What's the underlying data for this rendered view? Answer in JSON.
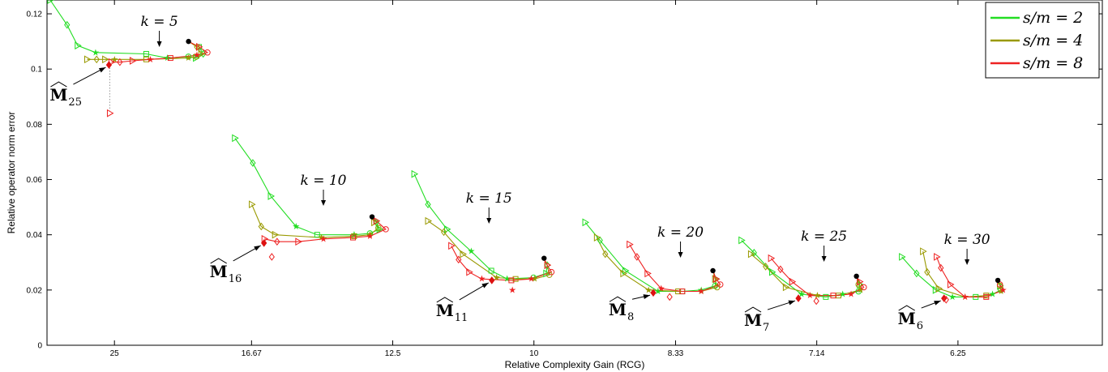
{
  "chart_data": {
    "type": "line",
    "xlabel": "Relative Complexity Gain (RCG)",
    "ylabel": "Relative operator norm error",
    "xlim": [
      0,
      1
    ],
    "ylim": [
      0,
      0.125
    ],
    "x_ticks": [
      {
        "pos": 0.0639,
        "label": "25"
      },
      {
        "pos": 0.1938,
        "label": "16.67"
      },
      {
        "pos": 0.3276,
        "label": "12.5"
      },
      {
        "pos": 0.4614,
        "label": "10"
      },
      {
        "pos": 0.5956,
        "label": "8.33"
      },
      {
        "pos": 0.7294,
        "label": "7.14"
      },
      {
        "pos": 0.8632,
        "label": "6.25"
      }
    ],
    "y_ticks": [
      {
        "value": 0,
        "label": "0"
      },
      {
        "value": 0.02,
        "label": "0.02"
      },
      {
        "value": 0.04,
        "label": "0.04"
      },
      {
        "value": 0.06,
        "label": "0.06"
      },
      {
        "value": 0.08,
        "label": "0.08"
      },
      {
        "value": 0.1,
        "label": "0.1"
      },
      {
        "value": 0.12,
        "label": "0.12"
      }
    ],
    "grid": false,
    "legend_position": "top-right",
    "series": [
      {
        "name": "s/m = 2",
        "color": "#22dd22"
      },
      {
        "name": "s/m = 4",
        "color": "#999900"
      },
      {
        "name": "s/m = 8",
        "color": "#ee2222"
      }
    ],
    "groups": [
      {
        "k_label": "k = 5",
        "m_label": "M",
        "m_sub": "25",
        "m_point": [
          0.0587,
          0.1015
        ],
        "extra_point": [
          0.0595,
          0.084
        ],
        "peak": [
          0.1341,
          0.11
        ],
        "curves": [
          [
            [
              0.003,
              0.125
            ],
            [
              0.019,
              0.116
            ],
            [
              0.029,
              0.1085
            ],
            [
              0.046,
              0.106
            ],
            [
              0.094,
              0.1055
            ],
            [
              0.114,
              0.104
            ],
            [
              0.134,
              0.1045
            ],
            [
              0.141,
              0.104
            ],
            [
              0.148,
              0.1055
            ],
            [
              0.144,
              0.108
            ],
            [
              0.1341,
              0.11
            ]
          ],
          [
            [
              0.038,
              0.1035
            ],
            [
              0.047,
              0.1035
            ],
            [
              0.055,
              0.1035
            ],
            [
              0.064,
              0.1035
            ],
            [
              0.094,
              0.1035
            ],
            [
              0.134,
              0.104
            ],
            [
              0.141,
              0.1045
            ],
            [
              0.146,
              0.1055
            ],
            [
              0.142,
              0.108
            ],
            [
              0.1341,
              0.11
            ]
          ],
          [
            [
              0.061,
              0.1025
            ],
            [
              0.069,
              0.1025
            ],
            [
              0.081,
              0.103
            ],
            [
              0.098,
              0.1035
            ],
            [
              0.117,
              0.104
            ],
            [
              0.142,
              0.105
            ],
            [
              0.152,
              0.106
            ],
            [
              0.144,
              0.108
            ],
            [
              0.1341,
              0.11
            ]
          ]
        ]
      },
      {
        "k_label": "k = 10",
        "m_label": "M",
        "m_sub": "16",
        "m_point": [
          0.2056,
          0.037
        ],
        "extra_point": [
          0.213,
          0.032
        ],
        "peak": [
          0.308,
          0.0465
        ],
        "curves": [
          [
            [
              0.178,
              0.075
            ],
            [
              0.195,
              0.066
            ],
            [
              0.212,
              0.054
            ],
            [
              0.236,
              0.043
            ],
            [
              0.256,
              0.04
            ],
            [
              0.291,
              0.04
            ],
            [
              0.306,
              0.0405
            ],
            [
              0.315,
              0.042
            ],
            [
              0.312,
              0.0445
            ],
            [
              0.308,
              0.0465
            ]
          ],
          [
            [
              0.194,
              0.051
            ],
            [
              0.203,
              0.043
            ],
            [
              0.216,
              0.04
            ],
            [
              0.26,
              0.039
            ],
            [
              0.291,
              0.0395
            ],
            [
              0.306,
              0.04
            ],
            [
              0.314,
              0.0425
            ],
            [
              0.31,
              0.0445
            ],
            [
              0.308,
              0.0465
            ]
          ],
          [
            [
              0.206,
              0.0385
            ],
            [
              0.218,
              0.0375
            ],
            [
              0.238,
              0.0375
            ],
            [
              0.262,
              0.0385
            ],
            [
              0.29,
              0.039
            ],
            [
              0.306,
              0.0395
            ],
            [
              0.321,
              0.042
            ],
            [
              0.312,
              0.045
            ],
            [
              0.308,
              0.0465
            ]
          ]
        ]
      },
      {
        "k_label": "k = 15",
        "m_label": "M",
        "m_sub": "11",
        "m_point": [
          0.4215,
          0.0235
        ],
        "extra_point": [
          0.441,
          0.02
        ],
        "peak": [
          0.471,
          0.0315
        ],
        "curves": [
          [
            [
              0.348,
              0.062
            ],
            [
              0.361,
              0.051
            ],
            [
              0.379,
              0.042
            ],
            [
              0.402,
              0.034
            ],
            [
              0.421,
              0.027
            ],
            [
              0.436,
              0.024
            ],
            [
              0.461,
              0.0245
            ],
            [
              0.473,
              0.026
            ],
            [
              0.474,
              0.029
            ],
            [
              0.471,
              0.0315
            ]
          ],
          [
            [
              0.361,
              0.045
            ],
            [
              0.376,
              0.041
            ],
            [
              0.394,
              0.033
            ],
            [
              0.426,
              0.0245
            ],
            [
              0.444,
              0.024
            ],
            [
              0.462,
              0.024
            ],
            [
              0.476,
              0.0255
            ],
            [
              0.474,
              0.029
            ],
            [
              0.471,
              0.0315
            ]
          ],
          [
            [
              0.383,
              0.036
            ],
            [
              0.39,
              0.031
            ],
            [
              0.4,
              0.0265
            ],
            [
              0.412,
              0.024
            ],
            [
              0.44,
              0.0235
            ],
            [
              0.459,
              0.024
            ],
            [
              0.478,
              0.0265
            ],
            [
              0.474,
              0.029
            ],
            [
              0.471,
              0.0315
            ]
          ]
        ]
      },
      {
        "k_label": "k = 20",
        "m_label": "M",
        "m_sub": "8",
        "m_point": [
          0.5745,
          0.019
        ],
        "extra_point": [
          0.59,
          0.0175
        ],
        "peak": [
          0.631,
          0.027
        ],
        "curves": [
          [
            [
              0.51,
              0.0445
            ],
            [
              0.524,
              0.038
            ],
            [
              0.548,
              0.027
            ],
            [
              0.579,
              0.0195
            ],
            [
              0.602,
              0.0195
            ],
            [
              0.62,
              0.02
            ],
            [
              0.633,
              0.0215
            ],
            [
              0.634,
              0.024
            ],
            [
              0.631,
              0.027
            ]
          ],
          [
            [
              0.521,
              0.039
            ],
            [
              0.529,
              0.033
            ],
            [
              0.546,
              0.026
            ],
            [
              0.57,
              0.02
            ],
            [
              0.598,
              0.0195
            ],
            [
              0.62,
              0.0195
            ],
            [
              0.635,
              0.021
            ],
            [
              0.633,
              0.024
            ],
            [
              0.631,
              0.027
            ]
          ],
          [
            [
              0.552,
              0.0365
            ],
            [
              0.559,
              0.032
            ],
            [
              0.569,
              0.026
            ],
            [
              0.582,
              0.0205
            ],
            [
              0.602,
              0.0195
            ],
            [
              0.62,
              0.0195
            ],
            [
              0.638,
              0.022
            ],
            [
              0.634,
              0.024
            ],
            [
              0.631,
              0.027
            ]
          ]
        ]
      },
      {
        "k_label": "k = 25",
        "m_label": "M",
        "m_sub": "7",
        "m_point": [
          0.712,
          0.017
        ],
        "extra_point": [
          0.729,
          0.016
        ],
        "peak": [
          0.767,
          0.025
        ],
        "curves": [
          [
            [
              0.658,
              0.038
            ],
            [
              0.67,
              0.0335
            ],
            [
              0.687,
              0.0265
            ],
            [
              0.715,
              0.0185
            ],
            [
              0.738,
              0.0175
            ],
            [
              0.754,
              0.0185
            ],
            [
              0.769,
              0.0195
            ],
            [
              0.77,
              0.022
            ],
            [
              0.767,
              0.025
            ]
          ],
          [
            [
              0.667,
              0.033
            ],
            [
              0.681,
              0.0285
            ],
            [
              0.7,
              0.021
            ],
            [
              0.73,
              0.018
            ],
            [
              0.75,
              0.018
            ],
            [
              0.771,
              0.02
            ],
            [
              0.769,
              0.022
            ],
            [
              0.767,
              0.025
            ]
          ],
          [
            [
              0.686,
              0.0315
            ],
            [
              0.695,
              0.0275
            ],
            [
              0.706,
              0.023
            ],
            [
              0.723,
              0.018
            ],
            [
              0.745,
              0.018
            ],
            [
              0.762,
              0.0185
            ],
            [
              0.774,
              0.021
            ],
            [
              0.77,
              0.023
            ],
            [
              0.767,
              0.025
            ]
          ]
        ]
      },
      {
        "k_label": "k = 30",
        "m_label": "M",
        "m_sub": "6",
        "m_point": [
          0.85,
          0.017
        ],
        "extra_point": [
          0.852,
          0.0165
        ],
        "peak": [
          0.901,
          0.0235
        ],
        "curves": [
          [
            [
              0.81,
              0.032
            ],
            [
              0.824,
              0.026
            ],
            [
              0.842,
              0.02
            ],
            [
              0.858,
              0.0175
            ],
            [
              0.88,
              0.0175
            ],
            [
              0.896,
              0.0185
            ],
            [
              0.904,
              0.02
            ],
            [
              0.903,
              0.0215
            ],
            [
              0.901,
              0.0235
            ]
          ],
          [
            [
              0.83,
              0.034
            ],
            [
              0.834,
              0.0265
            ],
            [
              0.845,
              0.0205
            ],
            [
              0.87,
              0.0175
            ],
            [
              0.89,
              0.018
            ],
            [
              0.904,
              0.0195
            ],
            [
              0.903,
              0.0215
            ],
            [
              0.901,
              0.0235
            ]
          ],
          [
            [
              0.843,
              0.032
            ],
            [
              0.847,
              0.028
            ],
            [
              0.856,
              0.022
            ],
            [
              0.87,
              0.0175
            ],
            [
              0.89,
              0.0175
            ],
            [
              0.906,
              0.02
            ],
            [
              0.903,
              0.022
            ],
            [
              0.901,
              0.0235
            ]
          ]
        ]
      }
    ]
  }
}
